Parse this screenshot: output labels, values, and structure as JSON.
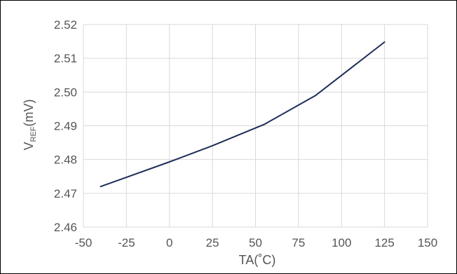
{
  "chart_data": {
    "type": "line",
    "xlabel": "TA(˚C)",
    "ylabel": {
      "main": "V",
      "sub": "REF",
      "suffix": "(mV)"
    },
    "xlim": [
      -50,
      150
    ],
    "ylim": [
      2.46,
      2.52
    ],
    "x_ticks": [
      -50,
      -25,
      0,
      25,
      50,
      75,
      100,
      125,
      150
    ],
    "y_ticks": [
      2.46,
      2.47,
      2.48,
      2.49,
      2.5,
      2.51,
      2.52
    ],
    "x_tick_labels": [
      "-50",
      "-25",
      "0",
      "25",
      "50",
      "75",
      "100",
      "125",
      "150"
    ],
    "y_tick_labels": [
      "2.46",
      "2.47",
      "2.48",
      "2.49",
      "2.50",
      "2.51",
      "2.52"
    ],
    "grid": true,
    "legend": "none",
    "series": [
      {
        "color": "#1f2d5a",
        "x": [
          -40,
          0,
          25,
          55,
          85,
          125
        ],
        "y": [
          2.472,
          2.4793,
          2.4841,
          2.4904,
          2.499,
          2.5148
        ]
      }
    ]
  }
}
